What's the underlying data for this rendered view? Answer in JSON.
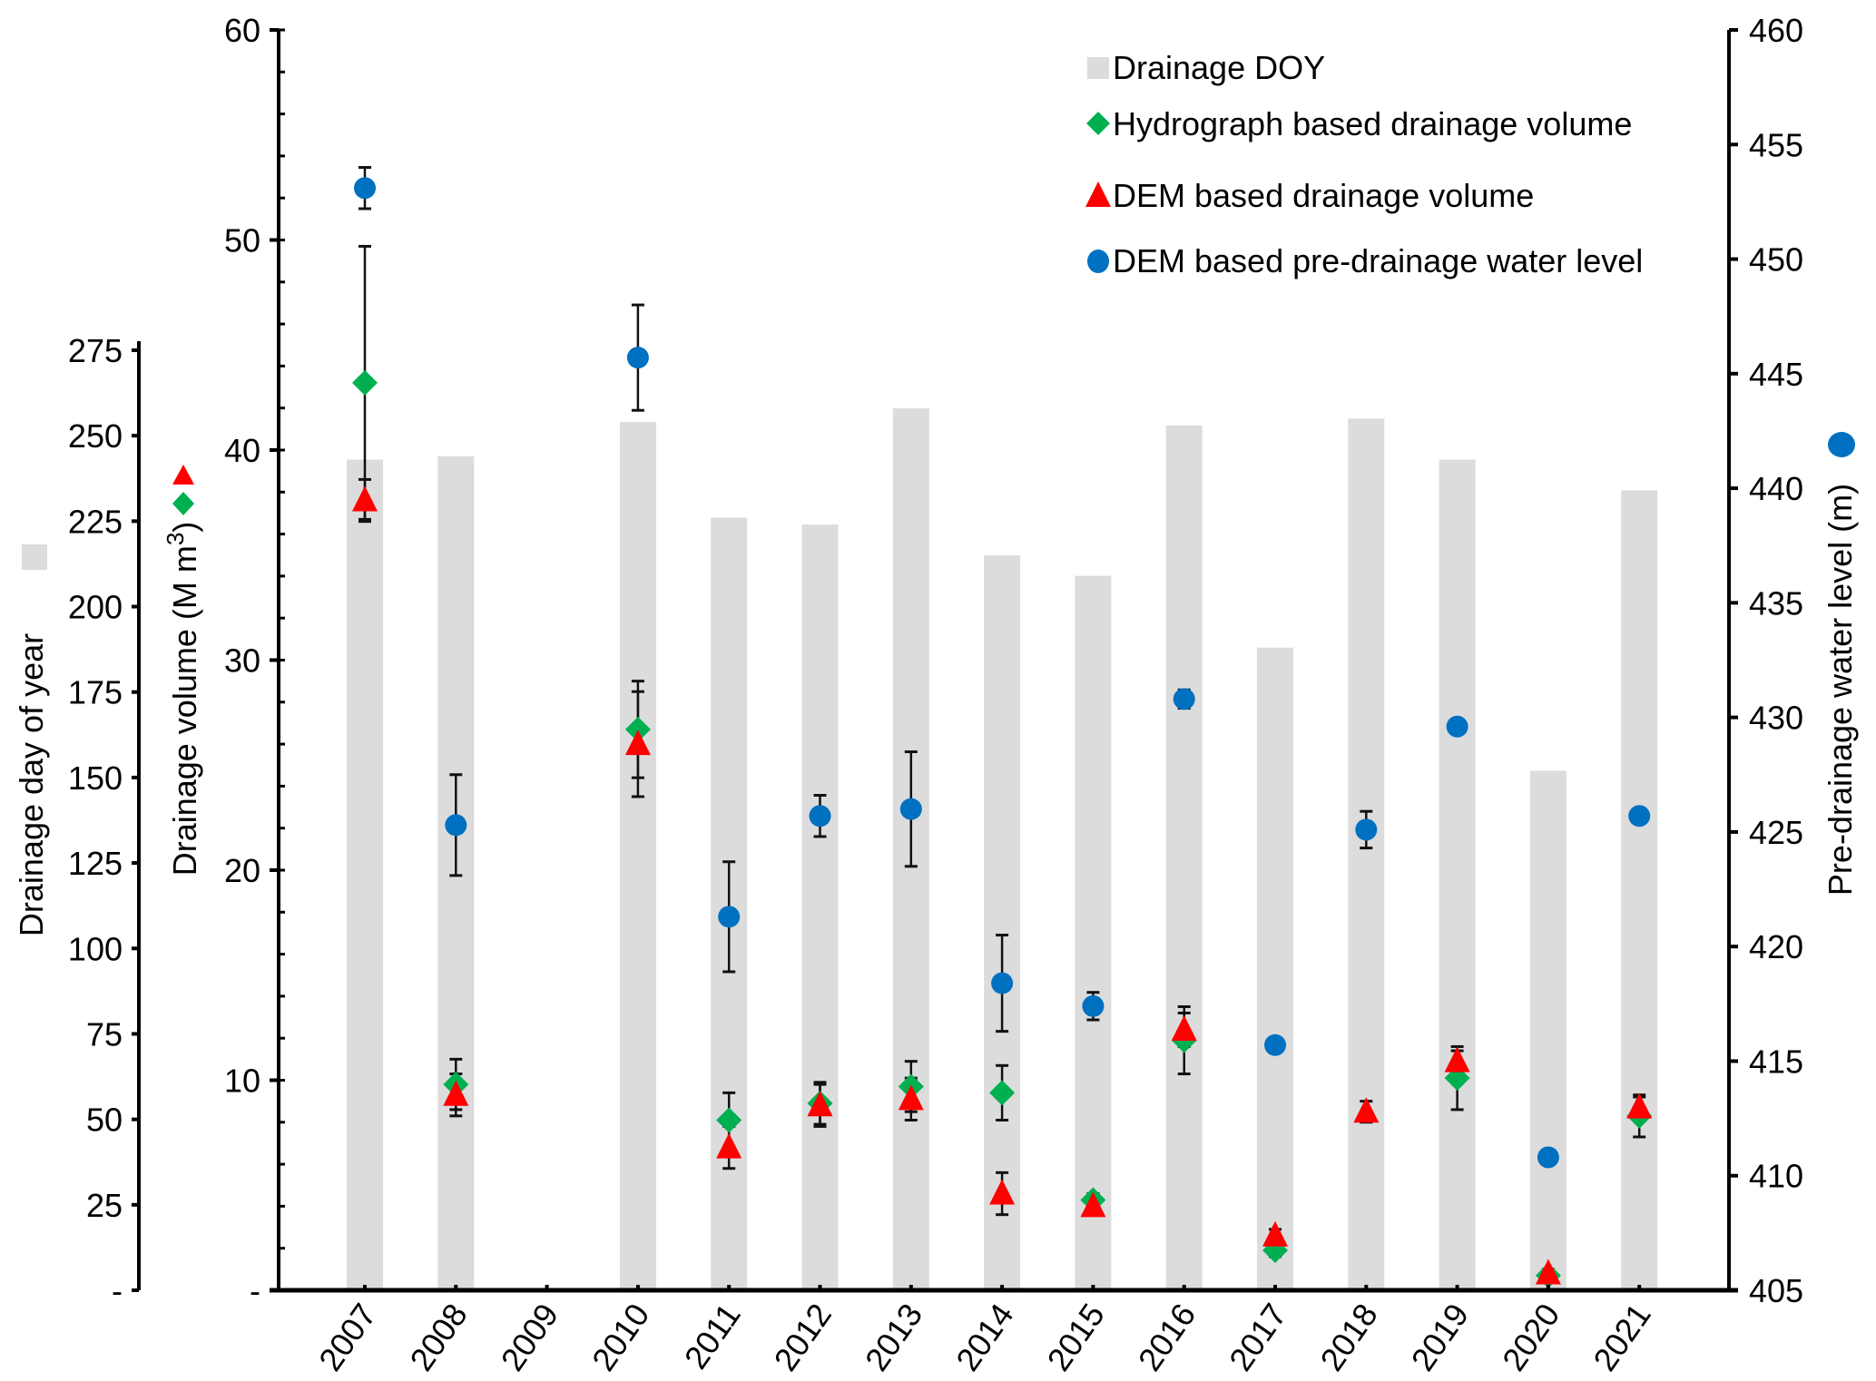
{
  "chart_data": {
    "type": "bar+scatter",
    "title": "",
    "categories": [
      "2007",
      "2008",
      "2009",
      "2010",
      "2011",
      "2012",
      "2013",
      "2014",
      "2015",
      "2016",
      "2017",
      "2018",
      "2019",
      "2020",
      "2021"
    ],
    "axes": {
      "doy": {
        "label": "Drainage day of year",
        "ylim": [
          0,
          275
        ],
        "ticks": [
          "-",
          "25",
          "50",
          "75",
          "100",
          "125",
          "150",
          "175",
          "200",
          "225",
          "250",
          "275"
        ],
        "tick_values": [
          0,
          25,
          50,
          75,
          100,
          125,
          150,
          175,
          200,
          225,
          250,
          275
        ]
      },
      "volume": {
        "label": "Drainage volume (M m",
        "label_sup": "3",
        "label_end": ")",
        "ylim": [
          0,
          60
        ],
        "ticks": [
          "-",
          "10",
          "20",
          "30",
          "40",
          "50",
          "60"
        ],
        "tick_values": [
          0,
          10,
          20,
          30,
          40,
          50,
          60
        ],
        "minor_step": 2
      },
      "level": {
        "label": "Pre-drainage water level (m)",
        "ylim": [
          405,
          460
        ],
        "ticks": [
          "405",
          "410",
          "415",
          "420",
          "425",
          "430",
          "435",
          "440",
          "445",
          "450",
          "455",
          "460"
        ],
        "tick_values": [
          405,
          410,
          415,
          420,
          425,
          430,
          435,
          440,
          445,
          450,
          455,
          460
        ]
      }
    },
    "series": [
      {
        "name": "Drainage DOY",
        "kind": "bar",
        "axis": "doy",
        "color": "#dcdcdc",
        "values": [
          243,
          244,
          null,
          254,
          226,
          224,
          258,
          215,
          209,
          253,
          188,
          255,
          243,
          152,
          234
        ]
      },
      {
        "name": "Hydrograph based drainage volume",
        "kind": "diamond",
        "axis": "volume",
        "color": "#00b050",
        "values": [
          43.2,
          9.8,
          null,
          26.7,
          8.1,
          8.9,
          9.7,
          9.4,
          4.3,
          11.9,
          1.9,
          null,
          10.1,
          0.7,
          8.3
        ],
        "err": [
          6.5,
          1.2,
          null,
          2.3,
          1.3,
          1.0,
          1.2,
          1.3,
          0.3,
          1.6,
          0.3,
          null,
          1.5,
          0.2,
          1.0
        ]
      },
      {
        "name": "DEM based drainage volume",
        "kind": "triangle",
        "axis": "volume",
        "color": "#ff0000",
        "values": [
          37.6,
          9.3,
          null,
          26.0,
          6.8,
          8.8,
          9.1,
          4.6,
          4.0,
          12.4,
          2.6,
          8.5,
          10.9,
          0.8,
          8.7
        ],
        "err": [
          1.0,
          1.0,
          null,
          2.5,
          1.0,
          1.0,
          1.0,
          1.0,
          0.3,
          0.8,
          0.3,
          0.5,
          0.5,
          0.2,
          0.5
        ]
      },
      {
        "name": "DEM based pre-drainage water level",
        "kind": "circle",
        "axis": "level",
        "color": "#0070c0",
        "values": [
          453.1,
          425.3,
          null,
          445.7,
          421.3,
          425.7,
          426.0,
          418.4,
          417.4,
          430.8,
          415.7,
          425.1,
          429.6,
          410.8,
          425.7
        ],
        "err": [
          0.9,
          2.2,
          null,
          2.3,
          2.4,
          0.9,
          2.5,
          2.1,
          0.6,
          0.4,
          0.3,
          0.8,
          0.0,
          0.1,
          0.1
        ]
      }
    ],
    "legend": {
      "position": "top-right",
      "items": [
        "Drainage DOY",
        "Hydrograph based drainage volume",
        "DEM based drainage volume",
        "DEM based pre-drainage water level"
      ]
    }
  }
}
